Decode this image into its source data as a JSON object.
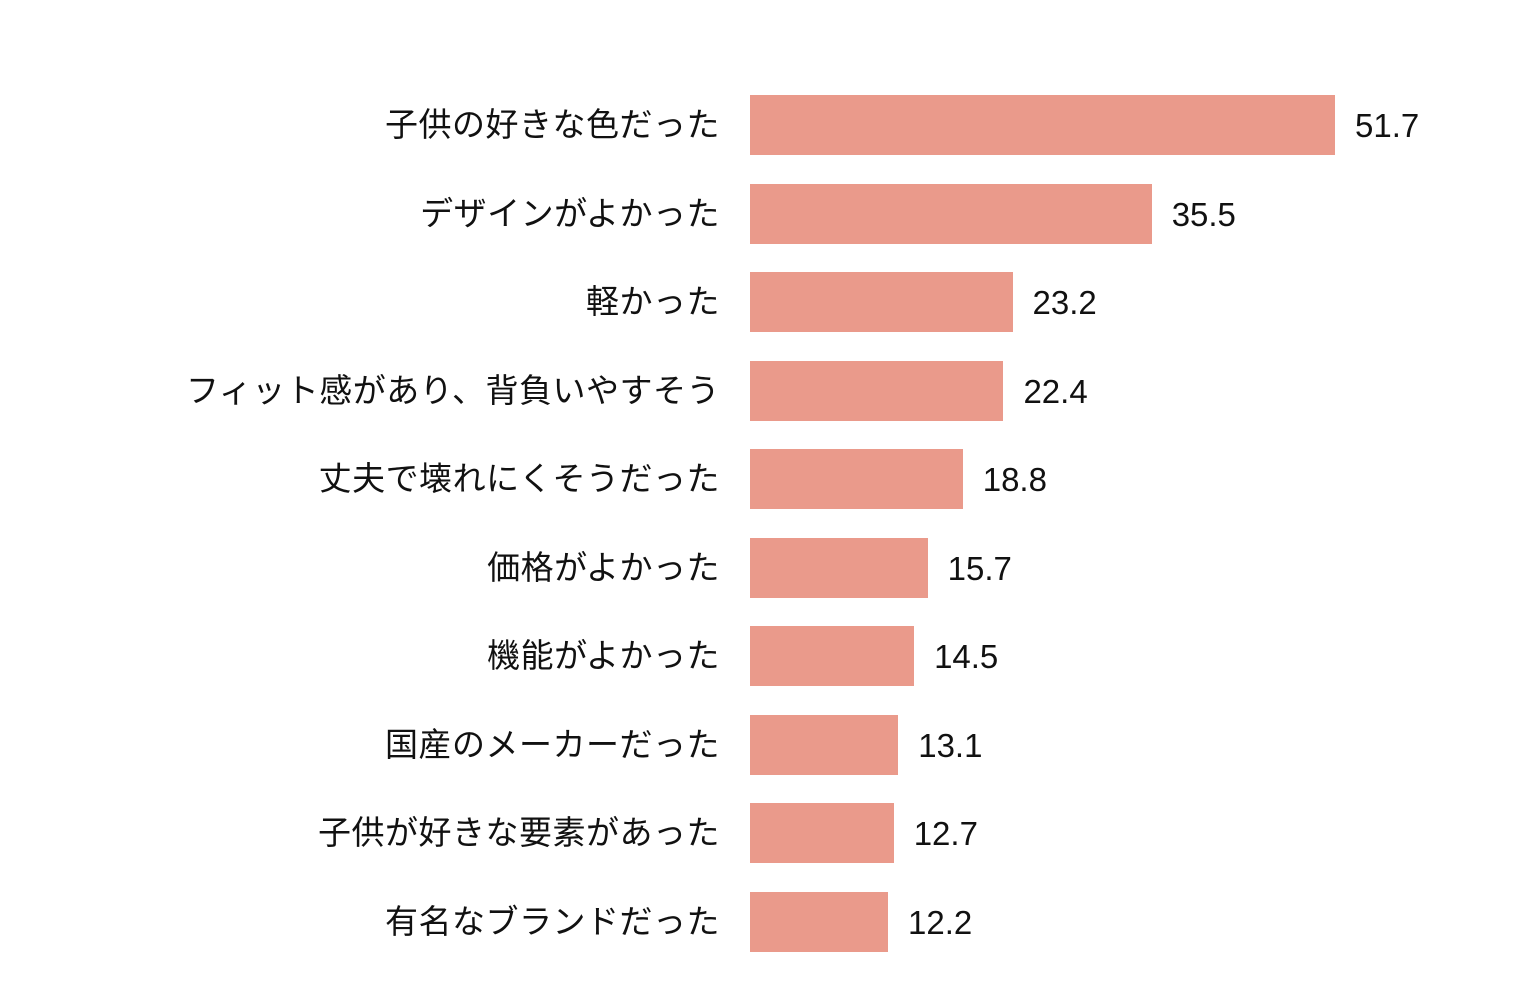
{
  "chart_data": {
    "type": "bar",
    "orientation": "horizontal",
    "title": "",
    "xlabel": "",
    "ylabel": "",
    "grid": false,
    "legend": null,
    "bar_color": "#ea9a8b",
    "categories": [
      "子供の好きな色だった",
      "デザインがよかった",
      "軽かった",
      "フィット感があり、背負いやすそう",
      "丈夫で壊れにくそうだった",
      "価格がよかった",
      "機能がよかった",
      "国産のメーカーだった",
      "子供が好きな要素があった",
      "有名なブランドだった"
    ],
    "values": [
      51.7,
      35.5,
      23.2,
      22.4,
      18.8,
      15.7,
      14.5,
      13.1,
      12.7,
      12.2
    ],
    "value_labels": [
      "51.7",
      "35.5",
      "23.2",
      "22.4",
      "18.8",
      "15.7",
      "14.5",
      "13.1",
      "12.7",
      "12.2"
    ],
    "xlim": [
      0,
      55
    ]
  }
}
